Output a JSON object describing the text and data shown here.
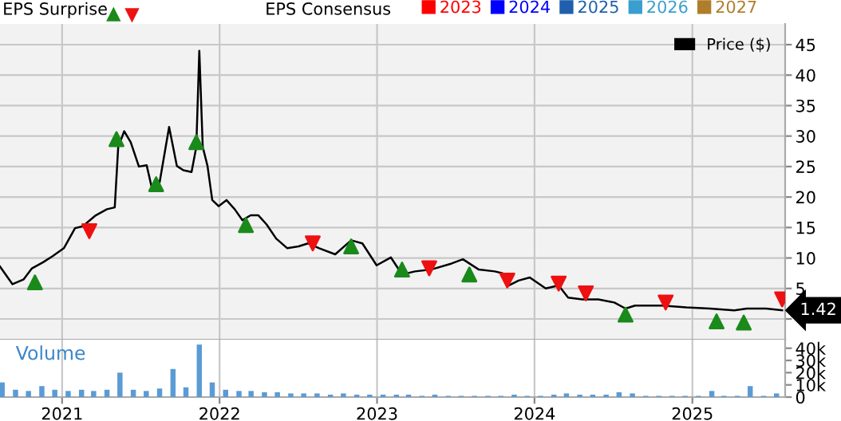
{
  "chart_data": [
    {
      "type": "line",
      "xlim": [
        "2020-08-10",
        "2025-08-04"
      ],
      "ylim": [
        -3.4,
        48.4
      ],
      "xticks": [
        {
          "value": "2021-01-01",
          "label": null
        },
        {
          "value": "2022-01-01",
          "label": null
        },
        {
          "value": "2023-01-01",
          "label": null
        },
        {
          "value": "2024-01-01",
          "label": null
        },
        {
          "value": "2025-01-01",
          "label": null
        }
      ],
      "yticks": [
        {
          "value": 0,
          "label": null
        },
        5,
        10,
        15,
        20,
        25,
        30,
        35,
        40,
        45
      ],
      "tick_labels": "y",
      "grid": true,
      "legend": "top right",
      "annotations": [
        "EPS Surprise",
        "EPS Consensus",
        {
          "text": "1.42",
          "x": "2025-07-28",
          "y": 1.42
        }
      ],
      "series": [
        {
          "name": "Price ($)",
          "color": "#000000",
          "type": "line",
          "marker": "none",
          "line_style": "solid",
          "x": [
            "2020-08-10",
            "2020-09-08",
            "2020-10-04",
            "2020-10-23",
            "2020-11-18",
            "2020-12-10",
            "2021-01-05",
            "2021-01-31",
            "2021-02-18",
            "2021-03-20",
            "2021-04-15",
            "2021-05-03",
            "2021-05-11",
            "2021-05-25",
            "2021-06-09",
            "2021-06-28",
            "2021-07-16",
            "2021-07-27",
            "2021-08-15",
            "2021-09-06",
            "2021-09-24",
            "2021-10-09",
            "2021-10-28",
            "2021-11-08",
            "2021-11-15",
            "2021-11-23",
            "2021-12-04",
            "2021-12-15",
            "2021-12-30",
            "2022-01-17",
            "2022-02-05",
            "2022-02-23",
            "2022-03-14",
            "2022-04-01",
            "2022-04-20",
            "2022-05-12",
            "2022-06-07",
            "2022-07-03",
            "2022-07-25",
            "2022-08-20",
            "2022-09-26",
            "2022-11-02",
            "2022-11-28",
            "2022-12-31",
            "2023-02-02",
            "2023-02-28",
            "2023-03-30",
            "2023-05-06",
            "2023-06-23",
            "2023-07-19",
            "2023-08-25",
            "2023-10-01",
            "2023-10-19",
            "2023-11-03",
            "2023-11-25",
            "2023-12-21",
            "2024-01-27",
            "2024-02-26",
            "2024-03-19",
            "2024-04-21",
            "2024-05-28",
            "2024-07-04",
            "2024-07-30",
            "2024-08-21",
            "2024-10-23",
            "2024-12-18",
            "2025-02-11",
            "2025-04-08",
            "2025-05-07",
            "2025-06-21",
            "2025-07-28"
          ],
          "values": [
            8.6,
            5.7,
            6.5,
            8.3,
            9.3,
            10.3,
            11.6,
            14.9,
            15.2,
            17,
            18,
            18.3,
            28.2,
            30.8,
            29,
            25,
            25.2,
            21.8,
            22.4,
            31.5,
            25.1,
            24.4,
            24.1,
            28.2,
            44,
            28.2,
            25.1,
            19.5,
            18.5,
            19.5,
            18,
            16.2,
            17,
            17,
            15.5,
            13.2,
            11.6,
            11.9,
            12.4,
            11.6,
            10.6,
            12.9,
            12.4,
            8.8,
            10.1,
            7.3,
            7.8,
            8.1,
            9.1,
            9.8,
            8.1,
            7.8,
            7.5,
            5.5,
            6.3,
            6.8,
            5,
            5.5,
            3.5,
            3.2,
            3.2,
            2.7,
            1.7,
            2.2,
            2.2,
            1.9,
            1.7,
            1.4,
            1.7,
            1.7,
            1.42
          ]
        },
        {
          "color": "#1a8a1a",
          "type": "scatter",
          "marker": "triangle",
          "x": [
            "2020-10-30",
            "2021-05-07",
            "2021-08-07",
            "2021-11-08",
            "2022-03-03",
            "2022-11-02",
            "2023-02-28",
            "2023-08-03",
            "2024-07-30",
            "2025-02-26",
            "2025-04-30"
          ],
          "values": [
            6.0,
            29.5,
            22.1,
            29,
            15.4,
            11.9,
            8.1,
            7.3,
            0.7,
            -0.4,
            -0.6
          ]
        },
        {
          "color": "#ee1111",
          "type": "scatter",
          "marker": "triangle_down",
          "x": [
            "2021-03-05",
            "2022-08-05",
            "2023-05-02",
            "2023-10-30",
            "2024-02-26",
            "2024-04-29",
            "2024-10-31",
            "2025-07-28"
          ],
          "values": [
            14.4,
            12.4,
            8.3,
            6.3,
            5.8,
            4.2,
            2.7,
            3.2
          ]
        },
        {
          "name": "2023",
          "color": "#ff0000",
          "type": "line"
        },
        {
          "name": "2024",
          "color": "#0000ff",
          "type": "line"
        },
        {
          "name": "2025",
          "color": "#1f5fad",
          "type": "line"
        },
        {
          "name": "2026",
          "color": "#3a9fcf",
          "type": "line"
        },
        {
          "name": "2027",
          "color": "#b07d2b",
          "type": "line"
        }
      ]
    },
    {
      "type": "bar",
      "xlim": [
        "2020-08-10",
        "2025-08-04"
      ],
      "ylim": [
        0,
        47
      ],
      "xticks": [
        {
          "value": "2021-01-01",
          "label": "2021"
        },
        {
          "value": "2022-01-01",
          "label": "2022"
        },
        {
          "value": "2023-01-01",
          "label": "2023"
        },
        {
          "value": "2024-01-01",
          "label": "2024"
        },
        {
          "value": "2025-01-01",
          "label": "2025"
        }
      ],
      "yticks": [
        {
          "value": 0,
          "label": "0"
        },
        {
          "value": 10,
          "label": "10k"
        },
        {
          "value": 20,
          "label": "20k"
        },
        {
          "value": 30,
          "label": "30k"
        },
        {
          "value": 40,
          "label": "40k"
        }
      ],
      "grid": "x",
      "annotations": [
        "Volume"
      ],
      "series": [
        {
          "color": "#5b9bd5",
          "x": [
            "2020-08-15",
            "2020-09-15",
            "2020-10-15",
            "2020-11-15",
            "2020-12-15",
            "2021-01-15",
            "2021-02-15",
            "2021-03-15",
            "2021-04-15",
            "2021-05-15",
            "2021-06-15",
            "2021-07-15",
            "2021-08-15",
            "2021-09-15",
            "2021-10-15",
            "2021-11-15",
            "2021-12-15",
            "2022-01-15",
            "2022-02-15",
            "2022-03-15",
            "2022-04-15",
            "2022-05-15",
            "2022-06-15",
            "2022-07-15",
            "2022-08-15",
            "2022-09-15",
            "2022-10-15",
            "2022-11-15",
            "2022-12-15",
            "2023-01-15",
            "2023-02-15",
            "2023-03-15",
            "2023-04-15",
            "2023-05-15",
            "2023-06-15",
            "2023-07-15",
            "2023-08-15",
            "2023-09-15",
            "2023-10-15",
            "2023-11-15",
            "2023-12-15",
            "2024-01-15",
            "2024-02-15",
            "2024-03-15",
            "2024-04-15",
            "2024-05-15",
            "2024-06-15",
            "2024-07-15",
            "2024-08-15",
            "2024-09-15",
            "2024-10-15",
            "2024-11-15",
            "2024-12-15",
            "2025-01-15",
            "2025-02-15",
            "2025-03-15",
            "2025-04-15",
            "2025-05-15",
            "2025-06-15",
            "2025-07-15"
          ],
          "values": [
            12,
            6,
            5,
            9,
            6,
            5,
            6,
            5,
            6,
            20,
            6,
            5,
            7,
            23,
            8,
            43,
            12,
            6,
            5,
            5,
            4,
            4,
            3,
            3,
            3,
            2,
            3,
            2,
            2,
            2,
            2,
            2,
            1,
            2,
            1,
            1,
            1,
            1,
            1,
            2,
            1,
            1,
            2,
            3,
            2,
            2,
            2,
            4,
            3,
            1,
            1,
            1,
            1,
            1,
            5,
            1,
            1,
            9,
            1,
            3
          ]
        }
      ]
    }
  ]
}
